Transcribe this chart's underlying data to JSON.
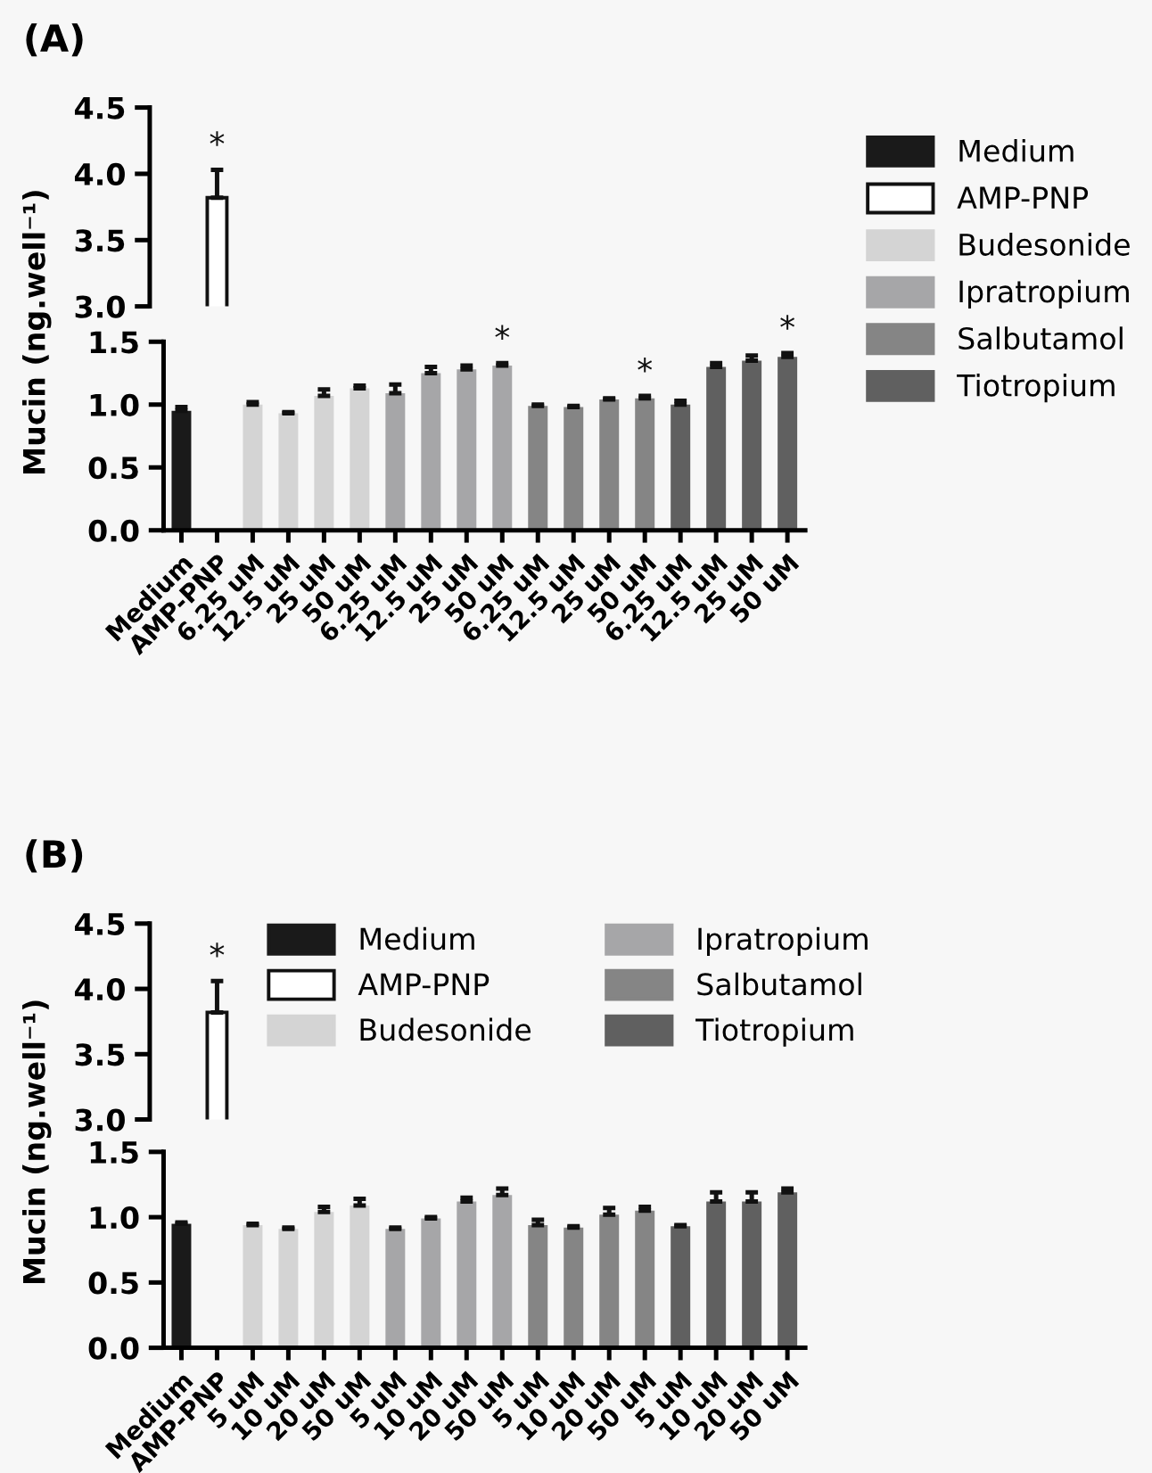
{
  "chart_data": [
    {
      "type": "bar",
      "title": "(A)",
      "categories": [
        null
      ],
      "tick_labels": "y",
      "ylim": [
        3.0,
        4.5
      ],
      "yticks": [
        {
          "value": 3,
          "label": "3.0"
        },
        3.5,
        {
          "value": 4,
          "label": "4.0"
        },
        4.5
      ],
      "grid": false,
      "legend": false,
      "series": [
        {
          "color": "#ffffff",
          "values": [
            3.82
          ],
          "errors": [
            [
              3.82,
              4.03
            ]
          ],
          "value_labels": [
            "*"
          ]
        }
      ]
    },
    {
      "type": "bar",
      "ylabel": "Mucin (ng.well⁻¹)",
      "categories": [
        "Medium",
        "AMP-PNP",
        "6.25 uM",
        "12.5 uM",
        "25 uM",
        "50 uM",
        "6.25 uM",
        "12.5 uM",
        "25 uM",
        "50 uM",
        "6.25 uM",
        "12.5 uM",
        "25 uM",
        "50 uM",
        "6.25 uM",
        "12.5 uM",
        "25 uM",
        "50 uM"
      ],
      "ylim": [
        0.0,
        1.5
      ],
      "yticks": [
        {
          "value": 0,
          "label": "0.0"
        },
        0.5,
        {
          "value": 1,
          "label": "1.0"
        },
        1.5
      ],
      "grid": false,
      "legend": "right",
      "series": [
        {
          "name": "Medium",
          "color": "#1a1a1a",
          "values": [
            0.95,
            null,
            null,
            null,
            null,
            null,
            null,
            null,
            null,
            null,
            null,
            null,
            null,
            null,
            null,
            null,
            null,
            null
          ],
          "errors": [
            [
              0.95,
              0.98
            ],
            null,
            null,
            null,
            null,
            null,
            null,
            null,
            null,
            null,
            null,
            null,
            null,
            null,
            null,
            null,
            null,
            null
          ]
        },
        {
          "name": "AMP-PNP",
          "color": "#ffffff",
          "values": [
            null,
            null,
            null,
            null,
            null,
            null,
            null,
            null,
            null,
            null,
            null,
            null,
            null,
            null,
            null,
            null,
            null,
            null
          ]
        },
        {
          "name": "Budesonide",
          "color": "#d4d4d4",
          "values": [
            null,
            null,
            1.0,
            0.93,
            1.07,
            1.13,
            null,
            null,
            null,
            null,
            null,
            null,
            null,
            null,
            null,
            null,
            null,
            null
          ],
          "errors": [
            null,
            null,
            [
              1.0,
              1.02
            ],
            [
              0.93,
              0.94
            ],
            [
              1.07,
              1.12
            ],
            [
              1.13,
              1.15
            ],
            null,
            null,
            null,
            null,
            null,
            null,
            null,
            null,
            null,
            null,
            null,
            null
          ]
        },
        {
          "name": "Ipratropium",
          "color": "#a6a6a8",
          "values": [
            null,
            null,
            null,
            null,
            null,
            null,
            1.09,
            1.25,
            1.28,
            1.31,
            null,
            null,
            null,
            null,
            null,
            null,
            null,
            null
          ],
          "errors": [
            null,
            null,
            null,
            null,
            null,
            null,
            [
              1.09,
              1.16
            ],
            [
              1.25,
              1.3
            ],
            [
              1.28,
              1.31
            ],
            [
              1.31,
              1.33
            ],
            null,
            null,
            null,
            null,
            null,
            null,
            null,
            null
          ],
          "value_labels": [
            null,
            null,
            null,
            null,
            null,
            null,
            null,
            null,
            null,
            "*",
            null,
            null,
            null,
            null,
            null,
            null,
            null,
            null
          ]
        },
        {
          "name": "Salbutamol",
          "color": "#858585",
          "values": [
            null,
            null,
            null,
            null,
            null,
            null,
            null,
            null,
            null,
            null,
            0.99,
            0.98,
            1.04,
            1.05,
            null,
            null,
            null,
            null
          ],
          "errors": [
            null,
            null,
            null,
            null,
            null,
            null,
            null,
            null,
            null,
            null,
            [
              0.99,
              1.0
            ],
            [
              0.98,
              0.99
            ],
            [
              1.04,
              1.05
            ],
            [
              1.05,
              1.07
            ],
            null,
            null,
            null,
            null
          ],
          "value_labels": [
            null,
            null,
            null,
            null,
            null,
            null,
            null,
            null,
            null,
            null,
            null,
            null,
            null,
            "*",
            null,
            null,
            null,
            null
          ]
        },
        {
          "name": "Tiotropium",
          "color": "#606060",
          "values": [
            null,
            null,
            null,
            null,
            null,
            null,
            null,
            null,
            null,
            null,
            null,
            null,
            null,
            null,
            1.0,
            1.3,
            1.35,
            1.38
          ],
          "errors": [
            null,
            null,
            null,
            null,
            null,
            null,
            null,
            null,
            null,
            null,
            null,
            null,
            null,
            null,
            [
              1.0,
              1.03
            ],
            [
              1.3,
              1.33
            ],
            [
              1.35,
              1.39
            ],
            [
              1.38,
              1.41
            ]
          ],
          "value_labels": [
            null,
            null,
            null,
            null,
            null,
            null,
            null,
            null,
            null,
            null,
            null,
            null,
            null,
            null,
            null,
            null,
            null,
            "*"
          ]
        }
      ]
    },
    {
      "type": "bar",
      "title": "(B)",
      "categories": [
        null
      ],
      "tick_labels": "y",
      "ylim": [
        3.0,
        4.5
      ],
      "yticks": [
        {
          "value": 3,
          "label": "3.0"
        },
        3.5,
        {
          "value": 4,
          "label": "4.0"
        },
        4.5
      ],
      "grid": false,
      "legend": "top",
      "series": [
        {
          "name": "Medium",
          "color": "#1a1a1a",
          "values": [
            null
          ]
        },
        {
          "name": "AMP-PNP",
          "color": "#ffffff",
          "values": [
            3.82
          ],
          "errors": [
            [
              3.82,
              4.06
            ]
          ],
          "value_labels": [
            "*"
          ]
        },
        {
          "name": "Budesonide",
          "color": "#d4d4d4",
          "values": [
            null
          ]
        },
        {
          "name": "Ipratropium",
          "color": "#a6a6a8",
          "values": [
            null
          ]
        },
        {
          "name": "Salbutamol",
          "color": "#858585",
          "values": [
            null
          ]
        },
        {
          "name": "Tiotropium",
          "color": "#606060",
          "values": [
            null
          ]
        }
      ]
    },
    {
      "type": "bar",
      "ylabel": "Mucin (ng.well⁻¹)",
      "categories": [
        "Medium",
        "AMP-PNP",
        "5 uM",
        "10 uM",
        "20 uM",
        "50 uM",
        "5 uM",
        "10 uM",
        "20 uM",
        "50 uM",
        "5 uM",
        "10 uM",
        "20 uM",
        "50 uM",
        "5 uM",
        "10 uM",
        "20 uM",
        "50 uM"
      ],
      "ylim": [
        0.0,
        1.5
      ],
      "yticks": [
        {
          "value": 0,
          "label": "0.0"
        },
        0.5,
        {
          "value": 1,
          "label": "1.0"
        },
        1.5
      ],
      "grid": false,
      "legend": false,
      "series": [
        {
          "color": "#1a1a1a",
          "values": [
            0.95,
            null,
            null,
            null,
            null,
            null,
            null,
            null,
            null,
            null,
            null,
            null,
            null,
            null,
            null,
            null,
            null,
            null
          ],
          "errors": [
            [
              0.95,
              0.96
            ],
            null,
            null,
            null,
            null,
            null,
            null,
            null,
            null,
            null,
            null,
            null,
            null,
            null,
            null,
            null,
            null,
            null
          ]
        },
        {
          "color": "#d4d4d4",
          "values": [
            null,
            null,
            0.94,
            0.91,
            1.04,
            1.09,
            null,
            null,
            null,
            null,
            null,
            null,
            null,
            null,
            null,
            null,
            null,
            null
          ],
          "errors": [
            null,
            null,
            [
              0.94,
              0.95
            ],
            [
              0.91,
              0.92
            ],
            [
              1.04,
              1.08
            ],
            [
              1.09,
              1.14
            ],
            null,
            null,
            null,
            null,
            null,
            null,
            null,
            null,
            null,
            null,
            null,
            null
          ]
        },
        {
          "color": "#a6a6a8",
          "values": [
            null,
            null,
            null,
            null,
            null,
            null,
            0.91,
            0.99,
            1.12,
            1.17,
            null,
            null,
            null,
            null,
            null,
            null,
            null,
            null
          ],
          "errors": [
            null,
            null,
            null,
            null,
            null,
            null,
            [
              0.91,
              0.92
            ],
            [
              0.99,
              1.0
            ],
            [
              1.12,
              1.15
            ],
            [
              1.17,
              1.22
            ],
            null,
            null,
            null,
            null,
            null,
            null,
            null,
            null
          ]
        },
        {
          "color": "#858585",
          "values": [
            null,
            null,
            null,
            null,
            null,
            null,
            null,
            null,
            null,
            null,
            0.94,
            0.92,
            1.02,
            1.05,
            null,
            null,
            null,
            null
          ],
          "errors": [
            null,
            null,
            null,
            null,
            null,
            null,
            null,
            null,
            null,
            null,
            [
              0.94,
              0.98
            ],
            [
              0.92,
              0.93
            ],
            [
              1.02,
              1.07
            ],
            [
              1.05,
              1.08
            ],
            null,
            null,
            null,
            null
          ]
        },
        {
          "color": "#606060",
          "values": [
            null,
            null,
            null,
            null,
            null,
            null,
            null,
            null,
            null,
            null,
            null,
            null,
            null,
            null,
            0.93,
            1.12,
            1.12,
            1.19
          ],
          "errors": [
            null,
            null,
            null,
            null,
            null,
            null,
            null,
            null,
            null,
            null,
            null,
            null,
            null,
            null,
            [
              0.93,
              0.94
            ],
            [
              1.12,
              1.19
            ],
            [
              1.12,
              1.19
            ],
            [
              1.19,
              1.22
            ]
          ]
        }
      ]
    }
  ]
}
